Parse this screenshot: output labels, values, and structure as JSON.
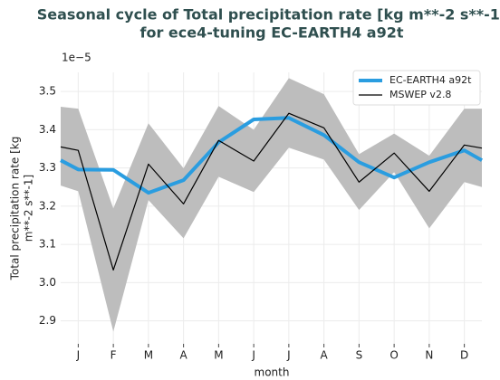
{
  "chart_data": {
    "type": "line",
    "title": [
      "Seasonal cycle of Total precipitation rate [kg m**-2 s**-1]",
      "for ece4-tuning EC-EARTH4 a92t"
    ],
    "y_offset_label": "1e−5",
    "xlabel": "month",
    "ylabel": [
      "Total precipitation rate [kg",
      "m**-2 s**-1]"
    ],
    "x": [
      0.5,
      1,
      2,
      3,
      4,
      5,
      6,
      7,
      8,
      9,
      10,
      11,
      12,
      12.5
    ],
    "xlim": [
      0.5,
      12.5
    ],
    "xticks": [
      {
        "value": 1,
        "label": "J"
      },
      {
        "value": 2,
        "label": "F"
      },
      {
        "value": 3,
        "label": "M"
      },
      {
        "value": 4,
        "label": "A"
      },
      {
        "value": 5,
        "label": "M"
      },
      {
        "value": 6,
        "label": "J"
      },
      {
        "value": 7,
        "label": "J"
      },
      {
        "value": 8,
        "label": "A"
      },
      {
        "value": 9,
        "label": "S"
      },
      {
        "value": 10,
        "label": "O"
      },
      {
        "value": 11,
        "label": "N"
      },
      {
        "value": 12,
        "label": "D"
      }
    ],
    "ylim": [
      2.84,
      3.55
    ],
    "yticks": [
      {
        "value": 2.9,
        "label": "2.9"
      },
      {
        "value": 3.0,
        "label": "3.0"
      },
      {
        "value": 3.1,
        "label": "3.1"
      },
      {
        "value": 3.2,
        "label": "3.2"
      },
      {
        "value": 3.3,
        "label": "3.3"
      },
      {
        "value": 3.4,
        "label": "3.4"
      },
      {
        "value": 3.5,
        "label": "3.5"
      }
    ],
    "grid": true,
    "legend": "upper right",
    "band": {
      "color": "#bdbdbd",
      "upper": [
        3.46,
        3.455,
        3.194,
        3.417,
        3.299,
        3.462,
        3.4,
        3.535,
        3.493,
        3.336,
        3.39,
        3.332,
        3.455,
        3.455
      ],
      "lower": [
        3.254,
        3.239,
        2.872,
        3.216,
        3.116,
        3.277,
        3.237,
        3.353,
        3.322,
        3.19,
        3.289,
        3.142,
        3.263,
        3.25
      ]
    },
    "series": [
      {
        "name": "EC-EARTH4 a92t",
        "color": "#2a9de0",
        "width": 4,
        "values": [
          3.32,
          3.296,
          3.295,
          3.235,
          3.268,
          3.367,
          3.427,
          3.431,
          3.386,
          3.315,
          3.275,
          3.315,
          3.346,
          3.32
        ]
      },
      {
        "name": "MSWEP v2.8",
        "color": "#000000",
        "width": 1.2,
        "values": [
          3.355,
          3.346,
          3.033,
          3.31,
          3.206,
          3.372,
          3.318,
          3.443,
          3.405,
          3.263,
          3.339,
          3.239,
          3.36,
          3.352
        ]
      }
    ]
  }
}
